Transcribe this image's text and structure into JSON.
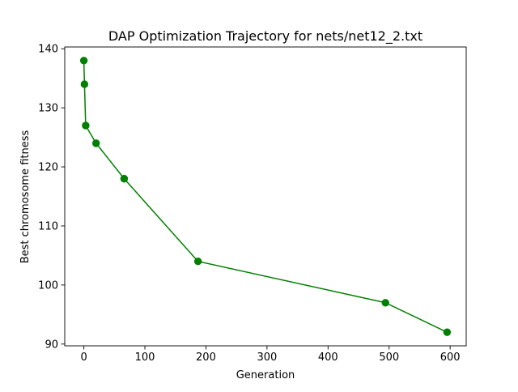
{
  "chart_data": {
    "type": "line",
    "title": "DAP Optimization Trajectory for nets/net12_2.txt",
    "xlabel": "Generation",
    "ylabel": "Best chromosome fitness",
    "xlim": [
      -31.3,
      626.3
    ],
    "ylim": [
      89.7,
      140.3
    ],
    "xticks": [
      0,
      100,
      200,
      300,
      400,
      500,
      600
    ],
    "yticks": [
      90,
      100,
      110,
      120,
      130,
      140
    ],
    "grid": false,
    "legend": "none",
    "series": [
      {
        "color": "#008000",
        "marker": "circle",
        "x": [
          0,
          1,
          3,
          20,
          66,
          187,
          494,
          595
        ],
        "y": [
          138,
          134,
          127,
          124,
          118,
          104,
          97,
          92
        ]
      }
    ]
  }
}
